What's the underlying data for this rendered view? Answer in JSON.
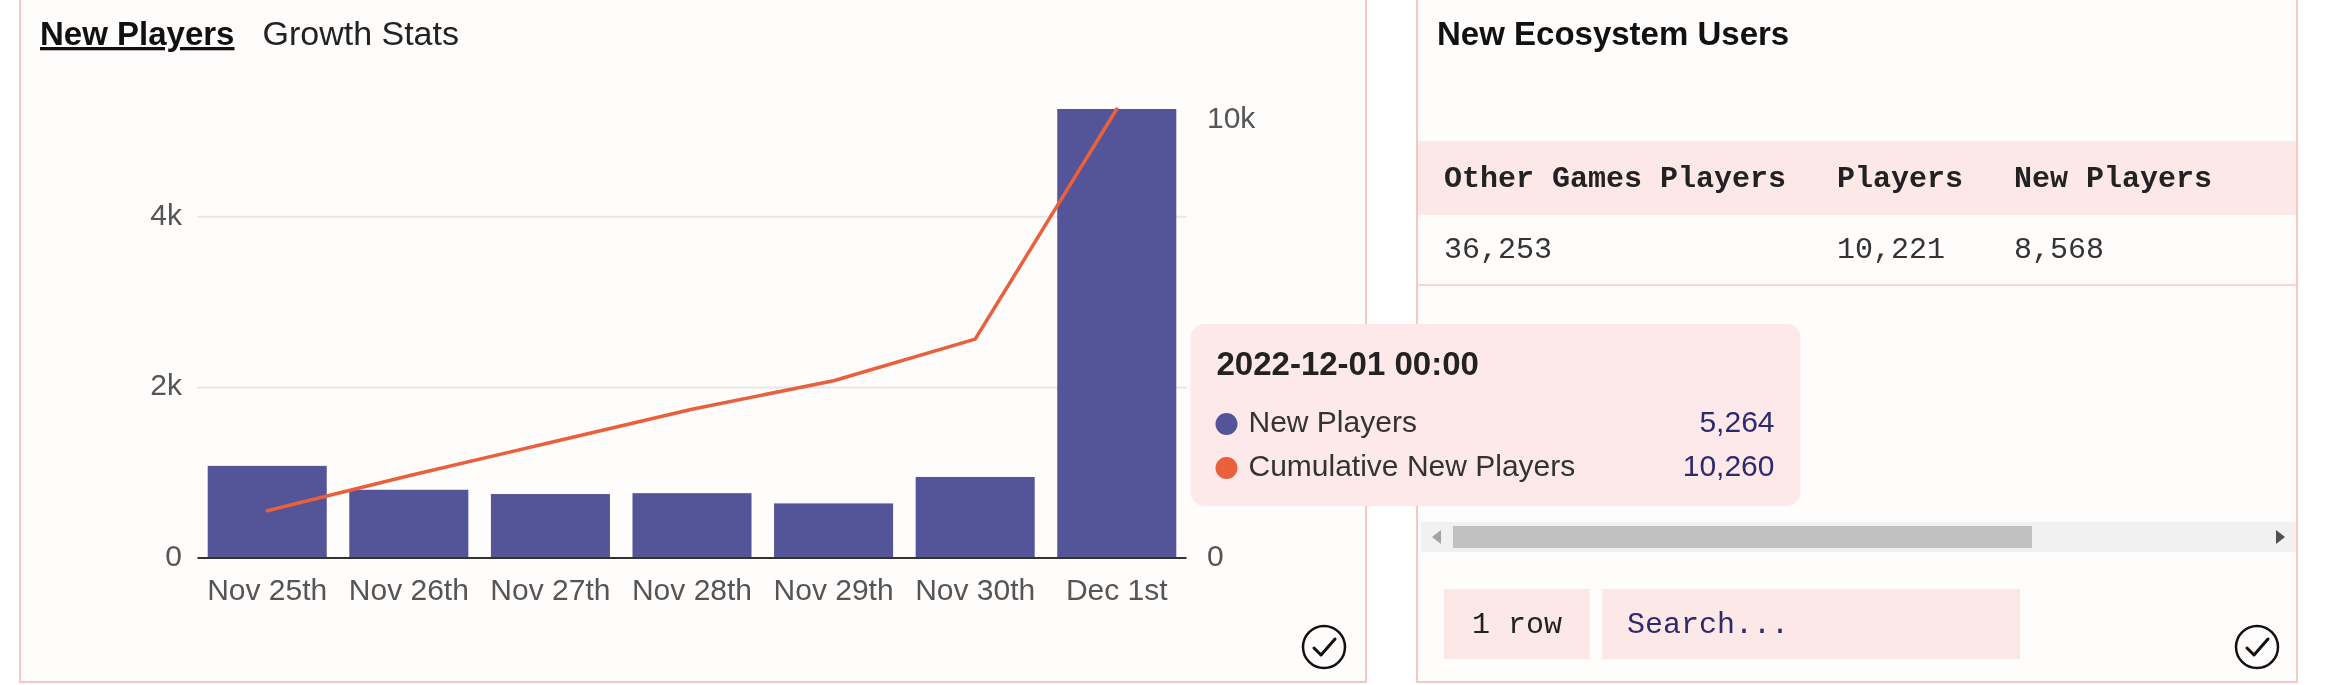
{
  "chart_data": [
    {
      "type": "bar",
      "title": "New Players",
      "subtitle": "Growth Stats",
      "categories": [
        "Nov 25th",
        "Nov 26th",
        "Nov 27th",
        "Nov 28th",
        "Nov 29th",
        "Nov 30th",
        "Dec 1st"
      ],
      "series": [
        {
          "name": "New Players",
          "type": "bar",
          "color": "#545499",
          "values": [
            1080,
            800,
            750,
            760,
            640,
            950,
            5264
          ]
        },
        {
          "name": "Cumulative New Players",
          "type": "line",
          "axis": "y2",
          "color": "#e8603c",
          "values": [
            1080,
            1880,
            2640,
            3400,
            4050,
            5000,
            10260
          ]
        }
      ],
      "ylim": [
        0,
        5264
      ],
      "yticks": [
        0,
        {
          "value": 2000,
          "label": "2k"
        },
        {
          "value": 4000,
          "label": "4k"
        }
      ],
      "y2lim": [
        0,
        10260
      ],
      "y2ticks": [
        0,
        {
          "value": 10000,
          "label": "10k"
        }
      ],
      "grid": "y",
      "legend": "right",
      "legend_title": "2022-12-01 00:00",
      "annotations": [
        "5,264",
        "10,260"
      ]
    },
    {
      "type": "other",
      "title": "New Ecosystem Users",
      "annotations": [
        "Other Games Players",
        "Players",
        "New Players",
        "36,253",
        "10,221",
        "8,568",
        "1 row",
        "Search..."
      ]
    }
  ]
}
